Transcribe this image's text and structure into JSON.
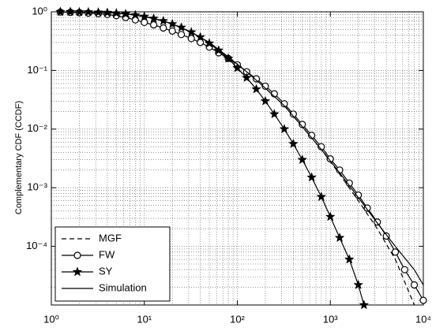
{
  "chart_data": {
    "type": "line",
    "ylabel": "Complementary CDF (CCDF)",
    "xscale": "log",
    "yscale": "log",
    "grid": true,
    "minor_grid": true,
    "legend": "lower left",
    "xlim": [
      1,
      10000
    ],
    "ylim": [
      1e-05,
      1
    ],
    "xticks": [
      {
        "value": 1,
        "label": "10⁰"
      },
      {
        "value": 10,
        "label": "10¹"
      },
      {
        "value": 100,
        "label": "10²"
      },
      {
        "value": 1000,
        "label": "10³"
      },
      {
        "value": 10000,
        "label": "10⁴"
      }
    ],
    "yticks": [
      {
        "value": 1,
        "label": "10⁰"
      },
      {
        "value": 0.1,
        "label": "10⁻¹"
      },
      {
        "value": 0.01,
        "label": "10⁻²"
      },
      {
        "value": 0.001,
        "label": "10⁻³"
      },
      {
        "value": 0.0001,
        "label": "10⁻⁴"
      }
    ],
    "series": [
      {
        "name": "MGF",
        "color": "#000000",
        "style": "dashed",
        "marker": "none",
        "x": [
          1.25,
          2,
          3.2,
          5,
          8,
          12.6,
          20,
          32,
          50,
          80,
          126,
          200,
          320,
          500,
          800,
          1260,
          2000,
          3200,
          5000,
          8000
        ],
        "values": [
          1,
          0.99,
          0.98,
          0.95,
          0.88,
          0.77,
          0.62,
          0.45,
          0.3,
          0.17,
          0.095,
          0.05,
          0.025,
          0.011,
          0.0045,
          0.0017,
          0.0006,
          0.0002,
          6e-05,
          1e-05
        ]
      },
      {
        "name": "FW",
        "color": "#000000",
        "style": "solid",
        "marker": "circle",
        "x": [
          1.25,
          1.6,
          2,
          2.5,
          3.2,
          4,
          5,
          6.3,
          8,
          10,
          12.6,
          16,
          20,
          25,
          32,
          40,
          50,
          63,
          80,
          100,
          126,
          160,
          200,
          250,
          320,
          400,
          500,
          630,
          800,
          1000,
          1260,
          1600,
          2000,
          2500,
          3200,
          4000,
          5000,
          6300,
          8000,
          10000
        ],
        "values": [
          0.99,
          0.98,
          0.97,
          0.95,
          0.93,
          0.9,
          0.86,
          0.8,
          0.73,
          0.66,
          0.6,
          0.53,
          0.47,
          0.41,
          0.35,
          0.3,
          0.25,
          0.2,
          0.16,
          0.125,
          0.095,
          0.072,
          0.054,
          0.04,
          0.027,
          0.018,
          0.012,
          0.0078,
          0.005,
          0.0031,
          0.002,
          0.0012,
          0.00075,
          0.00045,
          0.00026,
          0.00015,
          8e-05,
          4e-05,
          2.2e-05,
          1.2e-05
        ]
      },
      {
        "name": "SY",
        "color": "#000000",
        "style": "solid",
        "marker": "star",
        "x": [
          1.25,
          1.6,
          2,
          2.5,
          3.2,
          4,
          5,
          6.3,
          8,
          10,
          12.6,
          16,
          20,
          25,
          32,
          40,
          50,
          63,
          80,
          100,
          126,
          160,
          200,
          250,
          320,
          400,
          500,
          630,
          800,
          1000,
          1260,
          1600,
          2000,
          2300
        ],
        "values": [
          1,
          1,
          0.99,
          0.99,
          0.98,
          0.97,
          0.95,
          0.92,
          0.88,
          0.83,
          0.77,
          0.7,
          0.62,
          0.54,
          0.45,
          0.37,
          0.29,
          0.22,
          0.16,
          0.11,
          0.075,
          0.048,
          0.03,
          0.018,
          0.01,
          0.0056,
          0.003,
          0.0015,
          0.0007,
          0.00032,
          0.00014,
          6e-05,
          2.2e-05,
          1e-05
        ]
      },
      {
        "name": "Simulation",
        "color": "#000000",
        "style": "solid",
        "marker": "none",
        "x": [
          1.25,
          2,
          3.2,
          5,
          8,
          12.6,
          20,
          32,
          50,
          80,
          126,
          200,
          320,
          500,
          800,
          1260,
          2000,
          3200,
          5000,
          8000,
          10000
        ],
        "values": [
          1,
          0.99,
          0.98,
          0.95,
          0.88,
          0.77,
          0.62,
          0.45,
          0.3,
          0.17,
          0.095,
          0.05,
          0.025,
          0.011,
          0.0045,
          0.0018,
          0.00068,
          0.00025,
          0.0001,
          4e-05,
          2.2e-05
        ]
      }
    ]
  }
}
